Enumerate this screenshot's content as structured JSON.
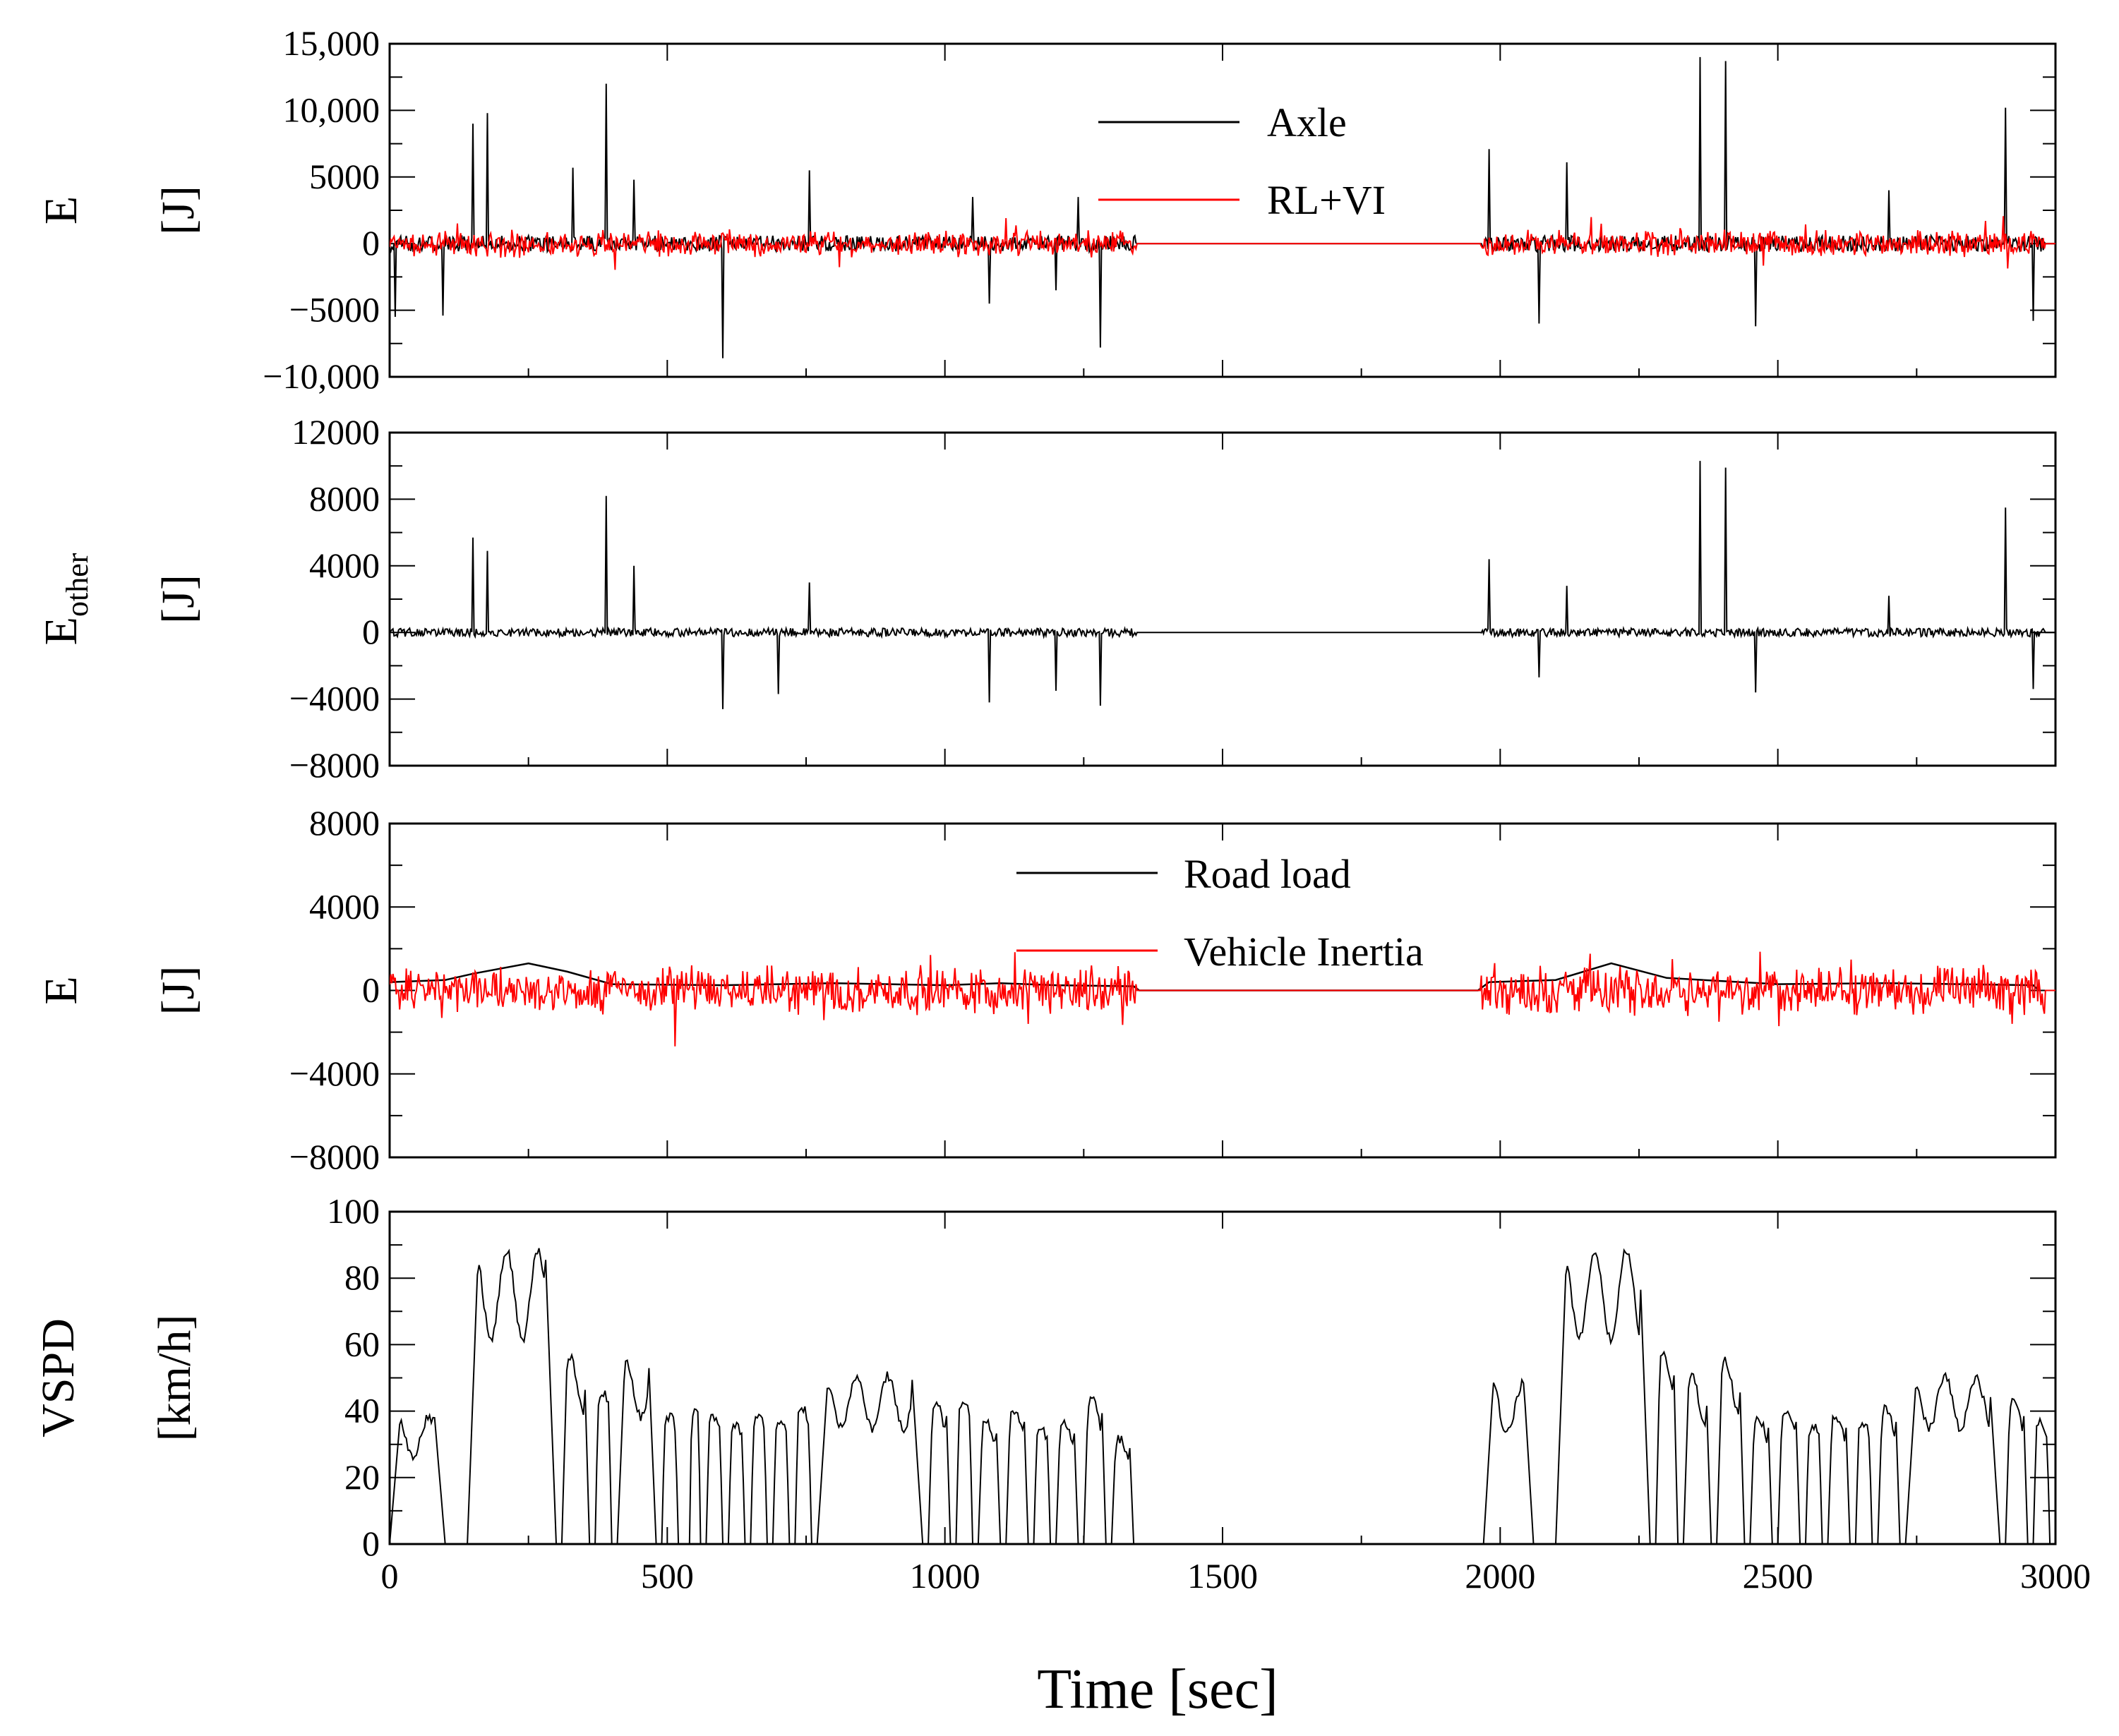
{
  "chart_data": [
    {
      "id": "panel-energy-axle",
      "type": "line",
      "ylabel_main": "E",
      "ylabel_unit": "[J]",
      "ylim": [
        -10000,
        15000
      ],
      "yticks": [
        -10000,
        -5000,
        0,
        5000,
        10000,
        15000
      ],
      "ytick_labels": [
        "−10,000",
        "−5000",
        "0",
        "5000",
        "10,000",
        "15,000"
      ],
      "xlim": [
        0,
        3000
      ],
      "legend_position": "top-center",
      "series": [
        {
          "name": "Axle",
          "color": "#000000",
          "style": "spiky",
          "noise": 1200,
          "spikes": [
            [
              150,
              9000
            ],
            [
              175,
              9800
            ],
            [
              330,
              5700
            ],
            [
              390,
              12000
            ],
            [
              440,
              4800
            ],
            [
              755,
              5500
            ],
            [
              1050,
              3500
            ],
            [
              1240,
              3500
            ],
            [
              1700,
              0
            ],
            [
              1980,
              7100
            ],
            [
              2120,
              6100
            ],
            [
              2360,
              14000
            ],
            [
              2405,
              13700
            ],
            [
              2700,
              4000
            ],
            [
              2910,
              10200
            ],
            [
              10,
              -5500
            ],
            [
              95,
              -5400
            ],
            [
              600,
              -8600
            ],
            [
              1080,
              -4500
            ],
            [
              1200,
              -3500
            ],
            [
              1280,
              -7800
            ],
            [
              2070,
              -6000
            ],
            [
              2460,
              -6200
            ],
            [
              2960,
              -5800
            ]
          ]
        },
        {
          "name": "RL+VI",
          "color": "#ff0000",
          "style": "noisy",
          "noise": 2200
        }
      ]
    },
    {
      "id": "panel-energy-other",
      "type": "line",
      "ylabel_main": "E",
      "ylabel_sub": "other",
      "ylabel_unit": "[J]",
      "ylim": [
        -8000,
        12000
      ],
      "yticks": [
        -8000,
        -4000,
        0,
        4000,
        8000,
        12000
      ],
      "ytick_labels": [
        "−8000",
        "−4000",
        "0",
        "4000",
        "8000",
        "12000"
      ],
      "xlim": [
        0,
        3000
      ],
      "series": [
        {
          "name": "E_other",
          "color": "#000000",
          "style": "spiky",
          "noise": 500,
          "spikes": [
            [
              150,
              5700
            ],
            [
              175,
              4900
            ],
            [
              390,
              8200
            ],
            [
              440,
              4000
            ],
            [
              755,
              3000
            ],
            [
              1980,
              4400
            ],
            [
              2120,
              2800
            ],
            [
              2360,
              10300
            ],
            [
              2405,
              9900
            ],
            [
              2700,
              2200
            ],
            [
              2910,
              7500
            ],
            [
              600,
              -4600
            ],
            [
              700,
              -3700
            ],
            [
              1080,
              -4200
            ],
            [
              1200,
              -3500
            ],
            [
              1280,
              -4400
            ],
            [
              2070,
              -2700
            ],
            [
              2460,
              -3600
            ],
            [
              2960,
              -3400
            ]
          ]
        }
      ]
    },
    {
      "id": "panel-energy-components",
      "type": "line",
      "ylabel_main": "E",
      "ylabel_unit": "[J]",
      "ylim": [
        -8000,
        8000
      ],
      "yticks": [
        -8000,
        -4000,
        0,
        4000,
        8000
      ],
      "ytick_labels": [
        "−8000",
        "−4000",
        "0",
        "4000",
        "8000"
      ],
      "xlim": [
        0,
        3000
      ],
      "legend_position": "top-center",
      "series": [
        {
          "name": "Road load",
          "color": "#000000",
          "style": "smooth",
          "points": [
            [
              0,
              400
            ],
            [
              100,
              500
            ],
            [
              150,
              800
            ],
            [
              250,
              1300
            ],
            [
              320,
              900
            ],
            [
              400,
              300
            ],
            [
              600,
              250
            ],
            [
              800,
              350
            ],
            [
              1000,
              250
            ],
            [
              1100,
              350
            ],
            [
              1200,
              250
            ],
            [
              1340,
              200
            ],
            [
              1350,
              0
            ],
            [
              1960,
              0
            ],
            [
              1980,
              400
            ],
            [
              2100,
              500
            ],
            [
              2200,
              1300
            ],
            [
              2300,
              600
            ],
            [
              2500,
              300
            ],
            [
              2700,
              350
            ],
            [
              2960,
              250
            ],
            [
              2970,
              0
            ]
          ]
        },
        {
          "name": "Vehicle Inertia",
          "color": "#ff0000",
          "style": "noisy",
          "noise": 2600
        }
      ]
    },
    {
      "id": "panel-vehicle-speed",
      "type": "line",
      "ylabel_main": "VSPD",
      "ylabel_unit": "[km/h]",
      "ylim": [
        0,
        100
      ],
      "yticks": [
        0,
        20,
        40,
        60,
        80,
        100
      ],
      "ytick_labels": [
        "0",
        "20",
        "40",
        "60",
        "80",
        "100"
      ],
      "xlim": [
        0,
        3000
      ],
      "xticks": [
        0,
        500,
        1000,
        1500,
        2000,
        2500,
        3000
      ],
      "xtick_labels": [
        "0",
        "500",
        "1000",
        "1500",
        "2000",
        "2500",
        "3000"
      ],
      "xlabel": "Time [sec]",
      "series": [
        {
          "name": "VSPD",
          "color": "#000000",
          "style": "speed",
          "trips": [
            [
              0,
              100,
              40
            ],
            [
              140,
              300,
              90
            ],
            [
              310,
              360,
              58
            ],
            [
              370,
              400,
              47
            ],
            [
              410,
              480,
              57
            ],
            [
              490,
              520,
              40
            ],
            [
              540,
              560,
              42
            ],
            [
              570,
              600,
              40
            ],
            [
              610,
              640,
              37
            ],
            [
              650,
              680,
              40
            ],
            [
              690,
              720,
              38
            ],
            [
              730,
              760,
              42
            ],
            [
              770,
              960,
              52
            ],
            [
              970,
              1010,
              44
            ],
            [
              1020,
              1050,
              44
            ],
            [
              1060,
              1100,
              38
            ],
            [
              1110,
              1150,
              42
            ],
            [
              1160,
              1190,
              36
            ],
            [
              1200,
              1240,
              38
            ],
            [
              1250,
              1290,
              45
            ],
            [
              1300,
              1340,
              33
            ],
            [
              1970,
              2060,
              50
            ],
            [
              2100,
              2270,
              90
            ],
            [
              2280,
              2320,
              58
            ],
            [
              2330,
              2380,
              52
            ],
            [
              2390,
              2440,
              57
            ],
            [
              2450,
              2490,
              40
            ],
            [
              2500,
              2540,
              42
            ],
            [
              2550,
              2580,
              37
            ],
            [
              2590,
              2630,
              40
            ],
            [
              2640,
              2670,
              38
            ],
            [
              2680,
              2720,
              42
            ],
            [
              2730,
              2900,
              52
            ],
            [
              2910,
              2950,
              44
            ],
            [
              2960,
              2990,
              38
            ]
          ]
        }
      ]
    }
  ],
  "legends": {
    "panel1": [
      "Axle",
      "RL+VI"
    ],
    "panel3": [
      "Road load",
      "Vehicle Inertia"
    ]
  },
  "xlabel": "Time [sec]"
}
